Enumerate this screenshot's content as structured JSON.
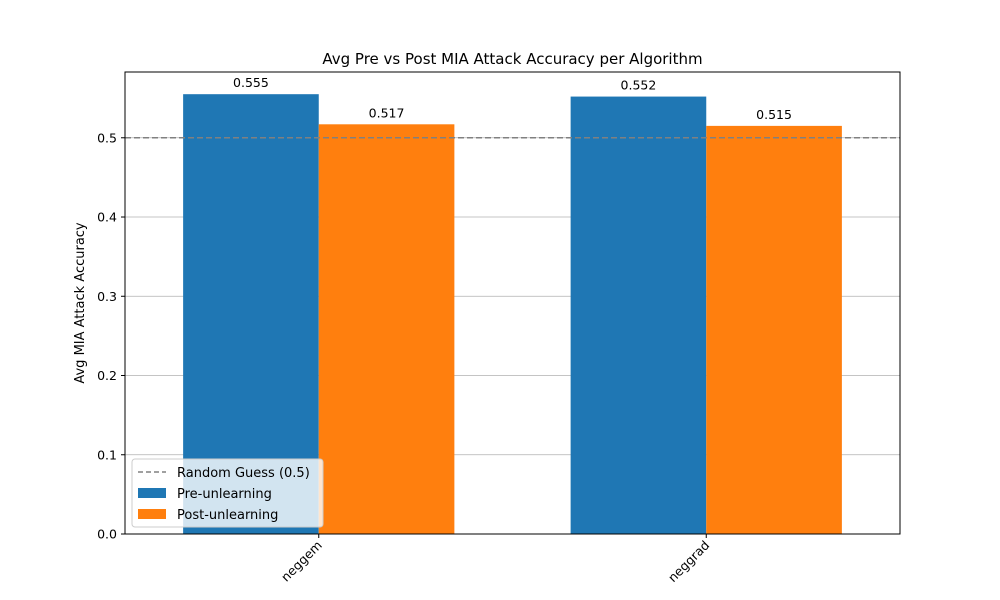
{
  "chart_data": {
    "type": "bar",
    "title": "Avg Pre vs Post MIA Attack Accuracy per Algorithm",
    "xlabel": "",
    "ylabel": "Avg MIA Attack Accuracy",
    "categories": [
      "neggem",
      "neggrad"
    ],
    "series": [
      {
        "name": "Pre-unlearning",
        "values": [
          0.555,
          0.552
        ],
        "color": "#1f77b4"
      },
      {
        "name": "Post-unlearning",
        "values": [
          0.517,
          0.515
        ],
        "color": "#ff7f0e"
      }
    ],
    "data_labels": [
      [
        "0.555",
        "0.552"
      ],
      [
        "0.517",
        "0.515"
      ]
    ],
    "ylim": [
      0,
      0.583
    ],
    "yticks": [
      0.0,
      0.1,
      0.2,
      0.3,
      0.4,
      0.5
    ],
    "ytick_labels": [
      "0.0",
      "0.1",
      "0.2",
      "0.3",
      "0.4",
      "0.5"
    ],
    "reference_line": {
      "label": "Random Guess (0.5)",
      "value": 0.5,
      "color": "#808080",
      "style": "dashed"
    },
    "grid": {
      "y": true,
      "x": false,
      "color": "#b0b0b0"
    },
    "legend": {
      "position": "lower-left"
    },
    "xtick_rotation": -45
  }
}
